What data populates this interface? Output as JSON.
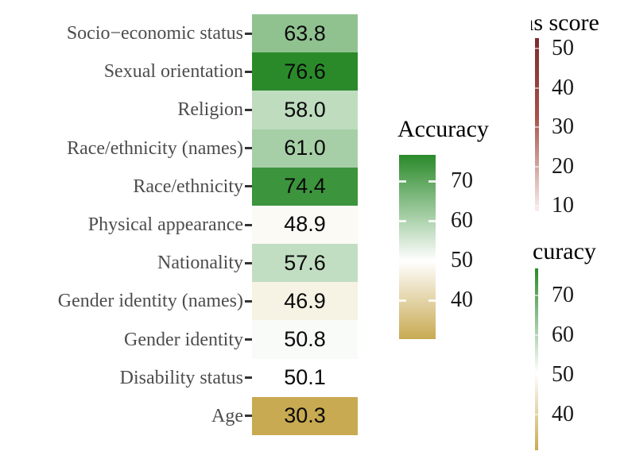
{
  "background": "#ffffff",
  "chart_data": {
    "type": "heatmap",
    "title": "",
    "categories": [
      "Socio−economic status",
      "Sexual orientation",
      "Religion",
      "Race/ethnicity (names)",
      "Race/ethnicity",
      "Physical appearance",
      "Nationality",
      "Gender identity (names)",
      "Gender identity",
      "Disability status",
      "Age"
    ],
    "values": [
      63.8,
      76.6,
      58.0,
      61.0,
      74.4,
      48.9,
      57.6,
      46.9,
      50.8,
      50.1,
      30.3
    ],
    "value_labels": [
      "63.8",
      "76.6",
      "58.0",
      "61.0",
      "74.4",
      "48.9",
      "57.6",
      "46.9",
      "50.8",
      "50.1",
      "30.3"
    ],
    "color_scale": {
      "type": "diverging",
      "low": "#c8aa52",
      "mid": "#ffffff",
      "high": "#2a8a2a",
      "midpoint": 50,
      "domain": [
        30.3,
        76.6
      ]
    },
    "legend": {
      "title": "Accuracy",
      "position": "right",
      "ticks": [
        "70",
        "60",
        "50",
        "40"
      ],
      "tick_values": [
        70,
        60,
        50,
        40
      ]
    },
    "colors": {
      "axis_text": "#4d4d4d",
      "axis_tick": "#333333",
      "cell_text": "#0a0a0a",
      "legend_text": "#1a1a1a"
    },
    "grid": false,
    "xlabel": "",
    "ylabel": ""
  },
  "right_edge_partial_legends": {
    "bias_score": {
      "title_visible": "as score",
      "ticks": [
        "50",
        "40",
        "30",
        "20",
        "10"
      ],
      "gradient_top": "#7c2b2b",
      "gradient_mid": "#a85048",
      "gradient_bottom": "#f8efec"
    },
    "accuracy_partial": {
      "title_visible": "curacy",
      "ticks": [
        "70",
        "60",
        "50",
        "40"
      ]
    }
  }
}
